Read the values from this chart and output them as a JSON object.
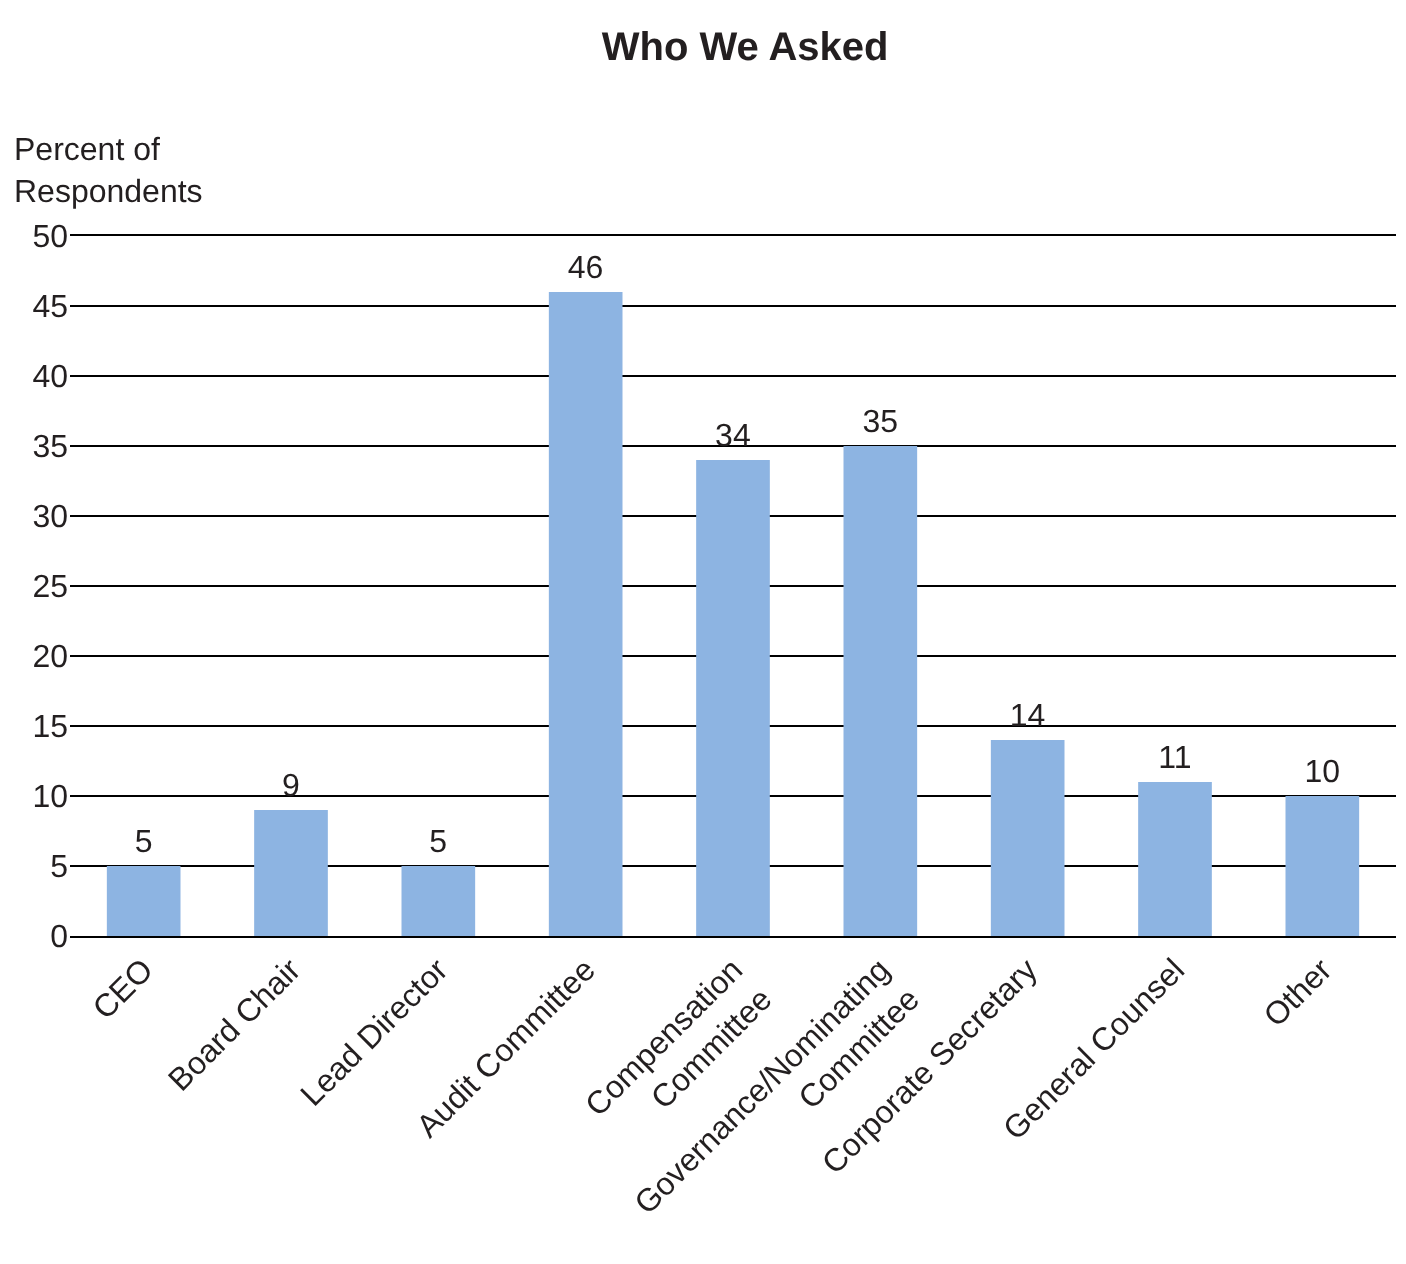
{
  "chart_data": {
    "type": "bar",
    "title": "Who We Asked",
    "ylabel": "Percent of\nRespondents",
    "categories": [
      "CEO",
      "Board Chair",
      "Lead Director",
      "Audit Committee",
      "Compensation\nCommittee",
      "Governance/Nominating\nCommittee",
      "Corporate Secretary",
      "General Counsel",
      "Other"
    ],
    "values": [
      5,
      9,
      5,
      46,
      34,
      35,
      14,
      11,
      10
    ],
    "color": "#8db4e2",
    "ylim": [
      0,
      50
    ],
    "yticks": [
      0,
      5,
      10,
      15,
      20,
      25,
      30,
      35,
      40,
      45,
      50
    ],
    "grid": "y",
    "data_labels": true,
    "legend": false
  }
}
